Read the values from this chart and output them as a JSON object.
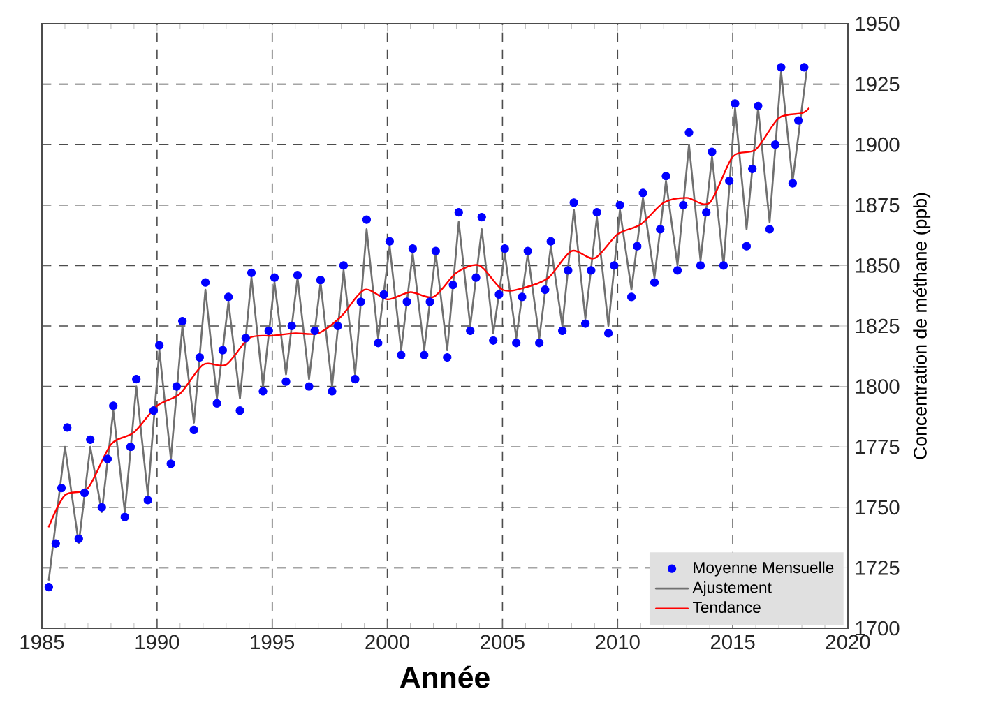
{
  "chart_data": {
    "type": "line",
    "xlabel": "Année",
    "ylabel": "Concentration de méthane (ppb)",
    "xlim": [
      1985,
      2020
    ],
    "ylim": [
      1700,
      1950
    ],
    "xticks": [
      1985,
      1990,
      1995,
      2000,
      2005,
      2010,
      2015,
      2020
    ],
    "yticks": [
      1700,
      1725,
      1750,
      1775,
      1800,
      1825,
      1850,
      1875,
      1900,
      1925,
      1950
    ],
    "grid": true,
    "legend": "bottom right",
    "series": [
      {
        "name": "Moyenne Mensuelle",
        "type": "scatter",
        "color": "#0000ff",
        "x": [
          1985.3,
          1985.6,
          1985.85,
          1986.1,
          1986.6,
          1986.85,
          1987.1,
          1987.6,
          1987.85,
          1988.1,
          1988.6,
          1988.85,
          1989.1,
          1989.6,
          1989.85,
          1990.1,
          1990.6,
          1990.85,
          1991.1,
          1991.6,
          1991.85,
          1992.1,
          1992.6,
          1992.85,
          1993.1,
          1993.6,
          1993.85,
          1994.1,
          1994.6,
          1994.85,
          1995.1,
          1995.6,
          1995.85,
          1996.1,
          1996.6,
          1996.85,
          1997.1,
          1997.6,
          1997.85,
          1998.1,
          1998.6,
          1998.85,
          1999.1,
          1999.6,
          1999.85,
          2000.1,
          2000.6,
          2000.85,
          2001.1,
          2001.6,
          2001.85,
          2002.1,
          2002.6,
          2002.85,
          2003.1,
          2003.6,
          2003.85,
          2004.1,
          2004.6,
          2004.85,
          2005.1,
          2005.6,
          2005.85,
          2006.1,
          2006.6,
          2006.85,
          2007.1,
          2007.6,
          2007.85,
          2008.1,
          2008.6,
          2008.85,
          2009.1,
          2009.6,
          2009.85,
          2010.1,
          2010.6,
          2010.85,
          2011.1,
          2011.6,
          2011.85,
          2012.1,
          2012.6,
          2012.85,
          2013.1,
          2013.6,
          2013.85,
          2014.1,
          2014.6,
          2014.85,
          2015.1,
          2015.6,
          2015.85,
          2016.1,
          2016.6,
          2016.85,
          2017.1,
          2017.6,
          2017.85,
          2018.1
        ],
        "values": [
          1717,
          1735,
          1758,
          1783,
          1737,
          1756,
          1778,
          1750,
          1770,
          1792,
          1746,
          1775,
          1803,
          1753,
          1790,
          1817,
          1768,
          1800,
          1827,
          1782,
          1812,
          1843,
          1793,
          1815,
          1837,
          1790,
          1820,
          1847,
          1798,
          1823,
          1845,
          1802,
          1825,
          1846,
          1800,
          1823,
          1844,
          1798,
          1825,
          1850,
          1803,
          1835,
          1869,
          1818,
          1838,
          1860,
          1813,
          1835,
          1857,
          1813,
          1835,
          1856,
          1812,
          1842,
          1872,
          1823,
          1845,
          1870,
          1819,
          1838,
          1857,
          1818,
          1837,
          1856,
          1818,
          1840,
          1860,
          1823,
          1848,
          1876,
          1826,
          1848,
          1872,
          1822,
          1850,
          1875,
          1837,
          1858,
          1880,
          1843,
          1865,
          1887,
          1848,
          1875,
          1905,
          1850,
          1872,
          1897,
          1850,
          1885,
          1917,
          1858,
          1890,
          1916,
          1865,
          1900,
          1932,
          1884,
          1910,
          1932
        ]
      },
      {
        "name": "Ajustement",
        "color": "#707070",
        "x": [
          1985.3,
          1986.0,
          1986.6,
          1987.1,
          1987.6,
          1988.1,
          1988.6,
          1989.1,
          1989.6,
          1990.1,
          1990.6,
          1991.1,
          1991.6,
          1992.1,
          1992.6,
          1993.1,
          1993.6,
          1994.1,
          1994.6,
          1995.1,
          1995.6,
          1996.1,
          1996.6,
          1997.1,
          1997.6,
          1998.1,
          1998.6,
          1999.1,
          1999.6,
          2000.1,
          2000.6,
          2001.1,
          2001.6,
          2002.1,
          2002.6,
          2003.1,
          2003.6,
          2004.1,
          2004.6,
          2005.1,
          2005.6,
          2006.1,
          2006.6,
          2007.1,
          2007.6,
          2008.1,
          2008.6,
          2009.1,
          2009.6,
          2010.1,
          2010.6,
          2011.1,
          2011.6,
          2012.1,
          2012.6,
          2013.1,
          2013.6,
          2014.1,
          2014.6,
          2015.1,
          2015.6,
          2016.1,
          2016.6,
          2017.1,
          2017.6,
          2018.2
        ],
        "values": [
          1720,
          1775,
          1735,
          1775,
          1748,
          1790,
          1748,
          1800,
          1755,
          1815,
          1770,
          1825,
          1785,
          1840,
          1795,
          1835,
          1795,
          1845,
          1800,
          1843,
          1805,
          1845,
          1803,
          1843,
          1800,
          1848,
          1805,
          1865,
          1820,
          1858,
          1815,
          1855,
          1815,
          1855,
          1815,
          1868,
          1825,
          1865,
          1822,
          1855,
          1820,
          1855,
          1820,
          1858,
          1825,
          1873,
          1828,
          1870,
          1825,
          1873,
          1840,
          1878,
          1845,
          1885,
          1850,
          1900,
          1852,
          1895,
          1850,
          1915,
          1865,
          1915,
          1868,
          1930,
          1885,
          1930
        ]
      },
      {
        "name": "Tendance",
        "color": "#ff0000",
        "x": [
          1985.3,
          1986,
          1987,
          1988,
          1989,
          1990,
          1991,
          1992,
          1993,
          1994,
          1995,
          1996,
          1997,
          1998,
          1999,
          2000,
          2001,
          2002,
          2003,
          2004,
          2005,
          2006,
          2007,
          2008,
          2009,
          2010,
          2011,
          2012,
          2013,
          2014,
          2015,
          2016,
          2017,
          2018,
          2018.3
        ],
        "values": [
          1742,
          1755,
          1758,
          1776,
          1781,
          1792,
          1797,
          1809,
          1809,
          1820,
          1821,
          1822,
          1822,
          1829,
          1840,
          1836,
          1839,
          1837,
          1847,
          1850,
          1840,
          1841,
          1845,
          1856,
          1853,
          1863,
          1867,
          1876,
          1878,
          1876,
          1895,
          1898,
          1911,
          1913,
          1915
        ]
      }
    ]
  }
}
